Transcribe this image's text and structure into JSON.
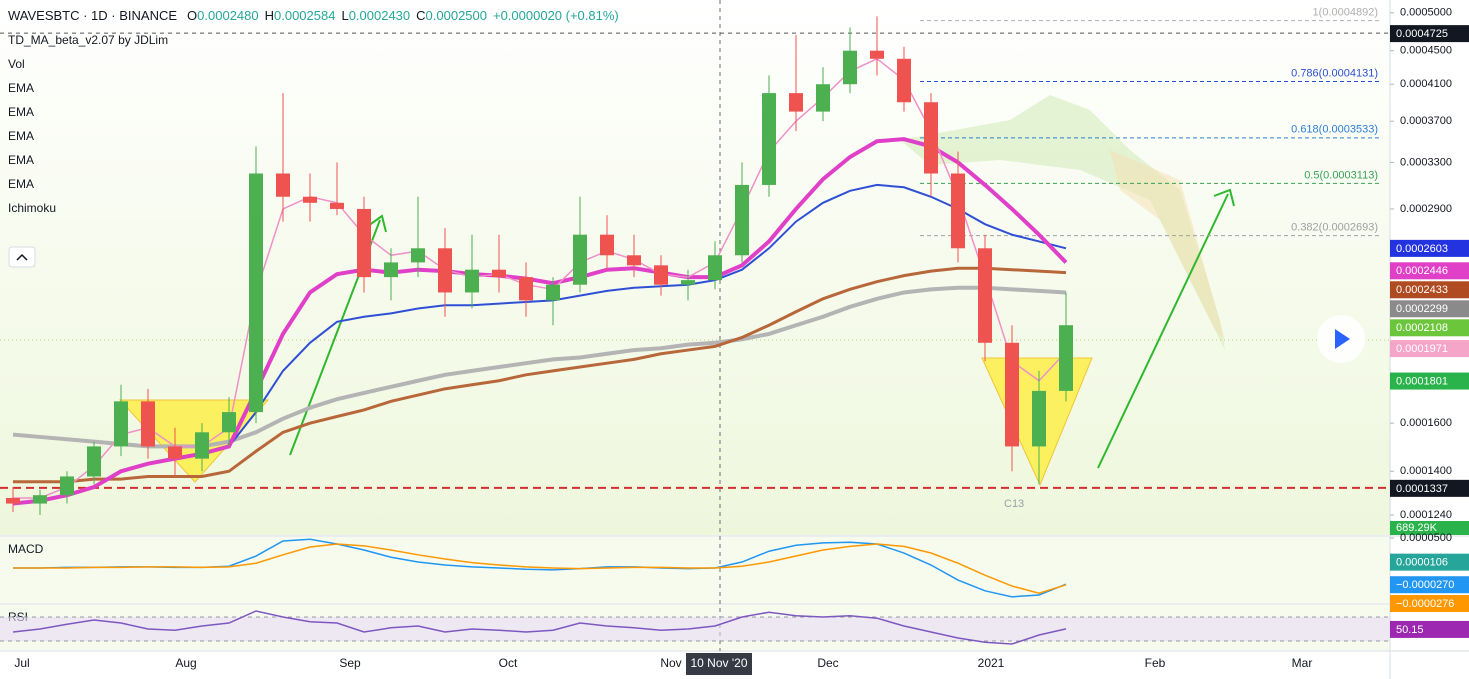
{
  "header": {
    "symbol": "WAVESBTC · 1D · BINANCE",
    "o_label": "O",
    "open": "0.0002480",
    "h_label": "H",
    "high": "0.0002584",
    "l_label": "L",
    "low": "0.0002430",
    "c_label": "C",
    "close": "0.0002500",
    "change": "+0.0000020 (+0.81%)"
  },
  "indicators": [
    "TD_MA_beta_v2.07 by JDLim",
    "Vol",
    "EMA",
    "EMA",
    "EMA",
    "EMA",
    "EMA",
    "Ichimoku"
  ],
  "volume_label": "689.29K",
  "pattern_label": "C13",
  "time_axis": {
    "labels": [
      "Jul",
      "Aug",
      "Sep",
      "Oct",
      "Nov",
      "Dec",
      "2021",
      "Feb",
      "Mar"
    ],
    "crosshair": "10 Nov '20"
  },
  "chart_data": [
    {
      "type": "candlestick",
      "log_scale": true,
      "up_color": "#4caf50",
      "down_color": "#ef5350",
      "ylim": [
        0.0001173,
        0.000518
      ],
      "yticks": [
        {
          "value": 0.0005,
          "label": "0.0005000"
        },
        {
          "value": 0.00045,
          "label": "0.0004500"
        },
        {
          "value": 0.00041,
          "label": "0.0004100"
        },
        {
          "value": 0.00037,
          "label": "0.0003700"
        },
        {
          "value": 0.00033,
          "label": "0.0003300"
        },
        {
          "value": 0.00029,
          "label": "0.0002900"
        },
        {
          "value": 0.00016,
          "label": "0.0001600"
        },
        {
          "value": 0.00014,
          "label": "0.0001400"
        },
        {
          "value": 0.000124,
          "label": "0.0001240"
        }
      ],
      "open": [
        0.00013,
        0.000128,
        0.000131,
        0.000138,
        0.00015,
        0.00017,
        0.00015,
        0.000145,
        0.000156,
        0.000165,
        0.00032,
        0.0003,
        0.000295,
        0.00029,
        0.00024,
        0.00025,
        0.00026,
        0.00023,
        0.000245,
        0.00024,
        0.000225,
        0.000235,
        0.00027,
        0.000255,
        0.000248,
        0.000235,
        0.000238,
        0.000255,
        0.00031,
        0.0004,
        0.00038,
        0.00041,
        0.00045,
        0.00044,
        0.00039,
        0.00032,
        0.00026,
        0.0002,
        0.00015,
        0.000175
      ],
      "high": [
        0.000134,
        0.000133,
        0.00014,
        0.000152,
        0.000178,
        0.000176,
        0.000158,
        0.00016,
        0.000172,
        0.000345,
        0.0004,
        0.00032,
        0.00033,
        0.0003,
        0.00026,
        0.0003,
        0.000275,
        0.00027,
        0.00027,
        0.00025,
        0.00024,
        0.0003,
        0.000285,
        0.00027,
        0.000255,
        0.000245,
        0.000265,
        0.00033,
        0.00042,
        0.00047,
        0.00043,
        0.00048,
        0.000495,
        0.000455,
        0.0004,
        0.00034,
        0.00027,
        0.00021,
        0.000185,
        0.00023
      ],
      "low": [
        0.000125,
        0.000124,
        0.000128,
        0.000135,
        0.000146,
        0.000145,
        0.000138,
        0.00014,
        0.00015,
        0.00016,
        0.00028,
        0.00028,
        0.000285,
        0.00023,
        0.000225,
        0.00024,
        0.000215,
        0.00022,
        0.00023,
        0.000215,
        0.00021,
        0.00023,
        0.000245,
        0.00024,
        0.000228,
        0.000225,
        0.000232,
        0.00025,
        0.0003,
        0.00036,
        0.00037,
        0.0004,
        0.00042,
        0.00038,
        0.0003,
        0.00025,
        0.00019,
        0.00014,
        0.000135,
        0.00017
      ],
      "close": [
        0.000128,
        0.000131,
        0.000138,
        0.00015,
        0.00017,
        0.00015,
        0.000145,
        0.000156,
        0.000165,
        0.00032,
        0.0003,
        0.000295,
        0.00029,
        0.00024,
        0.00025,
        0.00026,
        0.00023,
        0.000245,
        0.00024,
        0.000225,
        0.000235,
        0.00027,
        0.000255,
        0.000248,
        0.000235,
        0.000238,
        0.000255,
        0.00031,
        0.0004,
        0.00038,
        0.00041,
        0.00045,
        0.00044,
        0.00039,
        0.00032,
        0.00026,
        0.0002,
        0.00015,
        0.000175,
        0.00021
      ],
      "series": [
        {
          "name": "EMA",
          "color": "#b4b4b4",
          "width": 4,
          "values": [
            0.000155,
            0.000154,
            0.000153,
            0.000152,
            0.000151,
            0.00015,
            0.00015,
            0.00015,
            0.000152,
            0.000156,
            0.000162,
            0.000167,
            0.000171,
            0.000174,
            0.000177,
            0.00018,
            0.000183,
            0.000185,
            0.000187,
            0.000189,
            0.000191,
            0.000192,
            0.000194,
            0.000196,
            0.000197,
            0.000199,
            0.0002,
            0.000202,
            0.000205,
            0.00021,
            0.000215,
            0.000221,
            0.000226,
            0.00023,
            0.000232,
            0.000233,
            0.000233,
            0.000232,
            0.000231,
            0.00023
          ]
        },
        {
          "name": "EMA",
          "color": "#b8673a",
          "width": 3,
          "values": [
            0.000136,
            0.000136,
            0.000136,
            0.000137,
            0.000137,
            0.000138,
            0.000138,
            0.000138,
            0.00014,
            0.000148,
            0.000156,
            0.00016,
            0.000163,
            0.000166,
            0.00017,
            0.000173,
            0.000176,
            0.000178,
            0.00018,
            0.000183,
            0.000185,
            0.000187,
            0.000189,
            0.000191,
            0.000194,
            0.000196,
            0.000198,
            0.000203,
            0.00021,
            0.000218,
            0.000226,
            0.000232,
            0.000237,
            0.000241,
            0.000244,
            0.000246,
            0.000246,
            0.000245,
            0.000244,
            0.000243
          ]
        },
        {
          "name": "EMA",
          "color": "#2f4fd6",
          "width": 2,
          "values": [
            null,
            null,
            null,
            null,
            null,
            null,
            null,
            null,
            0.00015,
            0.000165,
            0.000185,
            0.0002,
            0.000212,
            0.000215,
            0.000217,
            0.00022,
            0.000222,
            0.000222,
            0.000223,
            0.000224,
            0.000225,
            0.000228,
            0.000231,
            0.000233,
            0.000234,
            0.000235,
            0.000238,
            0.000245,
            0.00026,
            0.00028,
            0.000295,
            0.000305,
            0.00031,
            0.000308,
            0.0003,
            0.00029,
            0.000278,
            0.00027,
            0.000265,
            0.00026
          ]
        },
        {
          "name": "EMA",
          "color": "#e040c8",
          "width": 4,
          "values": [
            0.000128,
            0.000129,
            0.000131,
            0.000134,
            0.00014,
            0.000143,
            0.000145,
            0.000147,
            0.00015,
            0.000175,
            0.000205,
            0.00023,
            0.000242,
            0.000245,
            0.000243,
            0.000245,
            0.000244,
            0.000242,
            0.000241,
            0.000239,
            0.000236,
            0.00024,
            0.000245,
            0.000246,
            0.000243,
            0.00024,
            0.00024,
            0.000248,
            0.000265,
            0.00029,
            0.000315,
            0.000335,
            0.00035,
            0.000352,
            0.000345,
            0.00033,
            0.00031,
            0.00029,
            0.00027,
            0.00025
          ]
        },
        {
          "name": "EMA",
          "color": "#f090c8",
          "width": 1.5,
          "values": [
            0.00013,
            0.00013,
            0.000134,
            0.000142,
            0.000155,
            0.000158,
            0.00015,
            0.00015,
            0.000158,
            0.00023,
            0.00029,
            0.0003,
            0.000295,
            0.00027,
            0.000255,
            0.000258,
            0.000245,
            0.00024,
            0.000242,
            0.000235,
            0.000232,
            0.00025,
            0.000258,
            0.000252,
            0.000242,
            0.00024,
            0.00025,
            0.00029,
            0.00034,
            0.00037,
            0.000395,
            0.000425,
            0.00044,
            0.000415,
            0.00036,
            0.0003,
            0.00024,
            0.00019,
            0.00018,
            0.000195
          ]
        }
      ],
      "fib_levels": [
        {
          "value": 0.0004892,
          "label": "1(0.0004892)",
          "color": "#b0b0b0"
        },
        {
          "value": 0.0004131,
          "label": "0.786(0.0004131)",
          "color": "#2c4fd0"
        },
        {
          "value": 0.0003533,
          "label": "0.618(0.0003533)",
          "color": "#2c7fd0"
        },
        {
          "value": 0.0003113,
          "label": "0.5(0.0003113)",
          "color": "#3aa05a"
        },
        {
          "value": 0.0002693,
          "label": "0.382(0.0002693)",
          "color": "#a0a0a0"
        }
      ],
      "price_tags": [
        {
          "value": 0.0004725,
          "label": "0.0004725",
          "color": "#131722",
          "line": "dashed"
        },
        {
          "value": 0.0002603,
          "label": "0.0002603",
          "color": "#2433e0"
        },
        {
          "value": 0.0002446,
          "label": "0.0002446",
          "color": "#e040c8"
        },
        {
          "value": 0.0002433,
          "label": "0.0002433",
          "color": "#b04a20"
        },
        {
          "value": 0.0002299,
          "label": "0.0002299",
          "color": "#8a8a8a"
        },
        {
          "value": 0.0002108,
          "label": "0.0002108",
          "color": "#6cc63c"
        },
        {
          "value": 0.0001971,
          "label": "0.0001971",
          "color": "#f5a6c8"
        },
        {
          "value": 0.0001801,
          "label": "0.0001801",
          "color": "#2ab34a"
        },
        {
          "value": 0.0001337,
          "label": "0.0001337",
          "color": "#131722",
          "line": "red-dashed"
        }
      ]
    },
    {
      "type": "line",
      "title": "MACD",
      "ylim": [
        -5.83e-05,
        5.17e-05
      ],
      "yticks": [
        {
          "value": 5e-05,
          "label": "0.0000500"
        }
      ],
      "series": [
        {
          "color": "#2196f3",
          "values": [
            0,
            0,
            1e-06,
            1e-06,
            2e-06,
            2e-06,
            1e-06,
            1e-06,
            3e-06,
            2e-05,
            4.5e-05,
            4.8e-05,
            4e-05,
            3e-05,
            1.8e-05,
            1e-05,
            5e-06,
            2e-06,
            0,
            -2e-06,
            -3e-06,
            -1e-06,
            2e-06,
            2e-06,
            0,
            -1e-06,
            0,
            1e-05,
            2.8e-05,
            3.8e-05,
            4.2e-05,
            4.3e-05,
            4e-05,
            2.5e-05,
            5e-06,
            -2e-05,
            -3.8e-05,
            -4.8e-05,
            -4.5e-05,
            -2.7e-05
          ]
        },
        {
          "color": "#ff9800",
          "values": [
            0,
            0,
            0,
            1e-06,
            1e-06,
            2e-06,
            2e-06,
            1e-06,
            2e-06,
            8e-06,
            2.2e-05,
            3.5e-05,
            4e-05,
            3.7e-05,
            3e-05,
            2.2e-05,
            1.5e-05,
            9e-06,
            5e-06,
            2e-06,
            0,
            -1e-06,
            0,
            1e-06,
            1e-06,
            0,
            0,
            3e-06,
            1e-05,
            2e-05,
            3e-05,
            3.6e-05,
            4e-05,
            3.6e-05,
            2.5e-05,
            8e-06,
            -1.2e-05,
            -3e-05,
            -4.2e-05,
            -2.8e-05
          ]
        }
      ],
      "tags": [
        {
          "value": 1.06e-05,
          "label": "0.0000106",
          "color": "#26a69a"
        },
        {
          "value": -2.7e-05,
          "label": "−0.0000270",
          "color": "#2196f3"
        },
        {
          "value": -2.76e-05,
          "label": "−0.0000276",
          "color": "#ff9800"
        }
      ]
    },
    {
      "type": "line",
      "title": "RSI",
      "ylim": [
        15,
        90
      ],
      "bands": [
        70,
        30
      ],
      "series": [
        {
          "color": "#7e57c2",
          "values": [
            45,
            50,
            58,
            65,
            60,
            50,
            48,
            55,
            60,
            80,
            70,
            62,
            60,
            45,
            52,
            55,
            45,
            50,
            48,
            45,
            48,
            60,
            55,
            52,
            48,
            50,
            55,
            70,
            78,
            72,
            70,
            72,
            68,
            55,
            45,
            35,
            28,
            25,
            40,
            50.15
          ]
        }
      ],
      "tags": [
        {
          "value": 50.15,
          "color": "#9c27b0"
        }
      ]
    }
  ]
}
